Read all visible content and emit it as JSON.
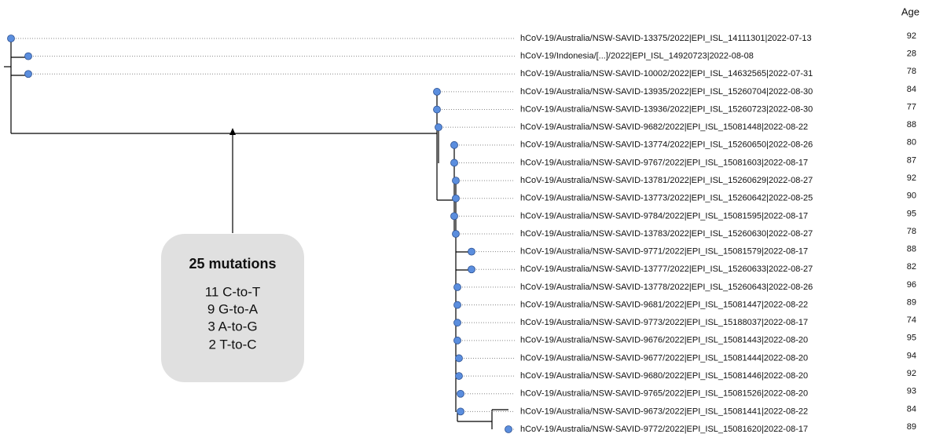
{
  "age_header": "Age",
  "leaves": [
    {
      "label": "hCoV-19/Australia/NSW-SAVID-13375/2022|EPI_ISL_14111301|2022-07-13",
      "age": "92"
    },
    {
      "label": "hCoV-19/Indonesia/[...]/2022|EPI_ISL_14920723|2022-08-08",
      "age": "28"
    },
    {
      "label": "hCoV-19/Australia/NSW-SAVID-10002/2022|EPI_ISL_14632565|2022-07-31",
      "age": "78"
    },
    {
      "label": "hCoV-19/Australia/NSW-SAVID-13935/2022|EPI_ISL_15260704|2022-08-30",
      "age": "84"
    },
    {
      "label": "hCoV-19/Australia/NSW-SAVID-13936/2022|EPI_ISL_15260723|2022-08-30",
      "age": "77"
    },
    {
      "label": "hCoV-19/Australia/NSW-SAVID-9682/2022|EPI_ISL_15081448|2022-08-22",
      "age": "88"
    },
    {
      "label": "hCoV-19/Australia/NSW-SAVID-13774/2022|EPI_ISL_15260650|2022-08-26",
      "age": "80"
    },
    {
      "label": "hCoV-19/Australia/NSW-SAVID-9767/2022|EPI_ISL_15081603|2022-08-17",
      "age": "87"
    },
    {
      "label": "hCoV-19/Australia/NSW-SAVID-13781/2022|EPI_ISL_15260629|2022-08-27",
      "age": "92"
    },
    {
      "label": "hCoV-19/Australia/NSW-SAVID-13773/2022|EPI_ISL_15260642|2022-08-25",
      "age": "90"
    },
    {
      "label": "hCoV-19/Australia/NSW-SAVID-9784/2022|EPI_ISL_15081595|2022-08-17",
      "age": "95"
    },
    {
      "label": "hCoV-19/Australia/NSW-SAVID-13783/2022|EPI_ISL_15260630|2022-08-27",
      "age": "78"
    },
    {
      "label": "hCoV-19/Australia/NSW-SAVID-9771/2022|EPI_ISL_15081579|2022-08-17",
      "age": "88"
    },
    {
      "label": "hCoV-19/Australia/NSW-SAVID-13777/2022|EPI_ISL_15260633|2022-08-27",
      "age": "82"
    },
    {
      "label": "hCoV-19/Australia/NSW-SAVID-13778/2022|EPI_ISL_15260643|2022-08-26",
      "age": "96"
    },
    {
      "label": "hCoV-19/Australia/NSW-SAVID-9681/2022|EPI_ISL_15081447|2022-08-22",
      "age": "89"
    },
    {
      "label": "hCoV-19/Australia/NSW-SAVID-9773/2022|EPI_ISL_15188037|2022-08-17",
      "age": "74"
    },
    {
      "label": "hCoV-19/Australia/NSW-SAVID-9676/2022|EPI_ISL_15081443|2022-08-20",
      "age": "95"
    },
    {
      "label": "hCoV-19/Australia/NSW-SAVID-9677/2022|EPI_ISL_15081444|2022-08-20",
      "age": "94"
    },
    {
      "label": "hCoV-19/Australia/NSW-SAVID-9680/2022|EPI_ISL_15081446|2022-08-20",
      "age": "92"
    },
    {
      "label": "hCoV-19/Australia/NSW-SAVID-9765/2022|EPI_ISL_15081526|2022-08-20",
      "age": "93"
    },
    {
      "label": "hCoV-19/Australia/NSW-SAVID-9673/2022|EPI_ISL_15081441|2022-08-22",
      "age": "84"
    },
    {
      "label": "hCoV-19/Australia/NSW-SAVID-9772/2022|EPI_ISL_15081620|2022-08-17",
      "age": "89"
    }
  ],
  "annotation": {
    "title": "25 mutations",
    "lines": [
      "11 C-to-T",
      "9 G-to-A",
      "3 A-to-G",
      "2 T-to-C"
    ]
  }
}
